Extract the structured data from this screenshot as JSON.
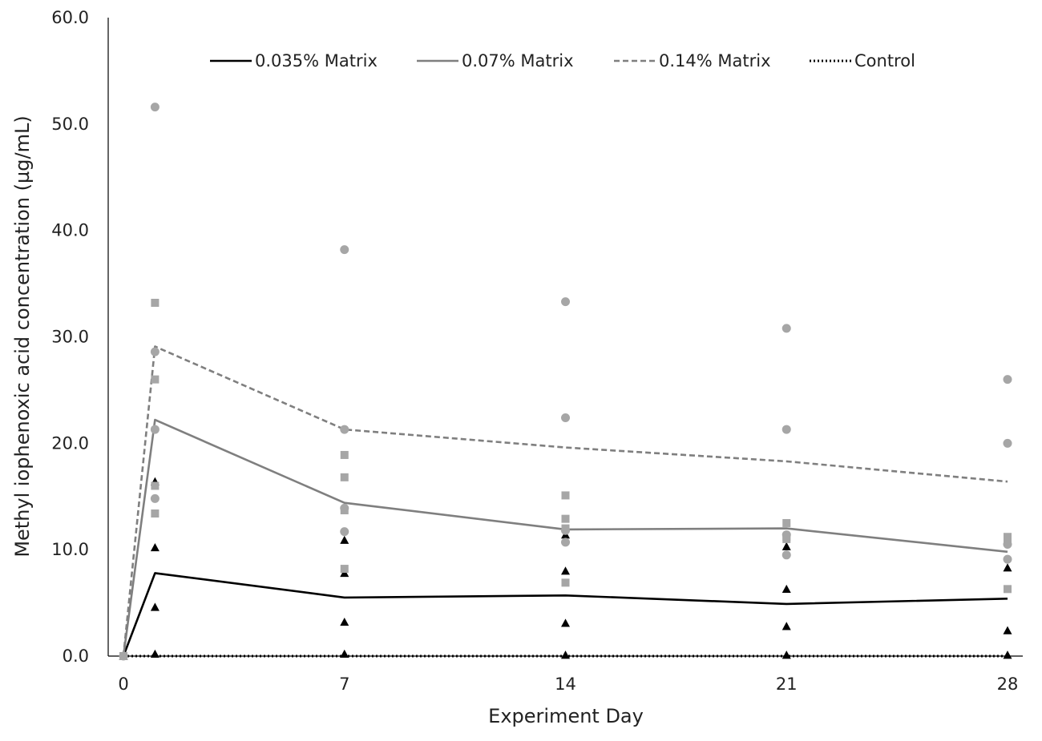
{
  "chart_data": {
    "type": "line",
    "title": "",
    "xlabel": "Experiment Day",
    "ylabel": "Methyl iophenoxic acid concentration (µg/mL)",
    "xlim": [
      0,
      28
    ],
    "ylim": [
      0,
      60
    ],
    "x_ticks": [
      0,
      7,
      14,
      21,
      28
    ],
    "y_ticks": [
      0,
      10,
      20,
      30,
      40,
      50,
      60
    ],
    "y_tick_labels": [
      "0.0",
      "10.0",
      "20.0",
      "30.0",
      "40.0",
      "50.0",
      "60.0"
    ],
    "grid": false,
    "legend_position": "top",
    "series": [
      {
        "name": "0.035% Matrix",
        "color": "#000000",
        "style": "solid",
        "marker": "triangle",
        "x": [
          0,
          1,
          7,
          14,
          21,
          28
        ],
        "mean": [
          0.0,
          7.8,
          5.5,
          5.7,
          4.9,
          5.4
        ],
        "points": [
          [
            0,
            0.0
          ],
          [
            1,
            16.4
          ],
          [
            1,
            10.2
          ],
          [
            1,
            4.6
          ],
          [
            1,
            0.2
          ],
          [
            7,
            10.9
          ],
          [
            7,
            7.8
          ],
          [
            7,
            3.2
          ],
          [
            7,
            0.2
          ],
          [
            14,
            11.4
          ],
          [
            14,
            8.0
          ],
          [
            14,
            3.1
          ],
          [
            14,
            0.1
          ],
          [
            21,
            10.3
          ],
          [
            21,
            6.3
          ],
          [
            21,
            2.8
          ],
          [
            21,
            0.1
          ],
          [
            28,
            8.3
          ],
          [
            28,
            2.4
          ],
          [
            28,
            0.1
          ]
        ]
      },
      {
        "name": "0.07% Matrix",
        "color": "#7f7f7f",
        "style": "solid",
        "marker": "square",
        "x": [
          0,
          1,
          7,
          14,
          21,
          28
        ],
        "mean": [
          0.0,
          22.2,
          14.4,
          11.9,
          12.0,
          9.8
        ],
        "points": [
          [
            0,
            0.0
          ],
          [
            1,
            33.2
          ],
          [
            1,
            26.0
          ],
          [
            1,
            16.0
          ],
          [
            1,
            13.4
          ],
          [
            7,
            18.9
          ],
          [
            7,
            16.8
          ],
          [
            7,
            13.7
          ],
          [
            7,
            8.2
          ],
          [
            14,
            15.1
          ],
          [
            14,
            12.9
          ],
          [
            14,
            12.0
          ],
          [
            14,
            6.9
          ],
          [
            21,
            12.5
          ],
          [
            21,
            11.2
          ],
          [
            21,
            11.0
          ],
          [
            28,
            11.2
          ],
          [
            28,
            10.8
          ],
          [
            28,
            6.3
          ]
        ]
      },
      {
        "name": "0.14% Matrix",
        "color": "#7f7f7f",
        "style": "dashed",
        "marker": "circle",
        "x": [
          0,
          1,
          7,
          14,
          21,
          28
        ],
        "mean": [
          0.0,
          29.1,
          21.3,
          19.6,
          18.3,
          16.4
        ],
        "points": [
          [
            0,
            0.0
          ],
          [
            1,
            51.6
          ],
          [
            1,
            28.6
          ],
          [
            1,
            21.3
          ],
          [
            1,
            14.8
          ],
          [
            7,
            38.2
          ],
          [
            7,
            21.3
          ],
          [
            7,
            13.9
          ],
          [
            7,
            11.7
          ],
          [
            14,
            33.3
          ],
          [
            14,
            22.4
          ],
          [
            14,
            11.8
          ],
          [
            14,
            10.7
          ],
          [
            21,
            30.8
          ],
          [
            21,
            21.3
          ],
          [
            21,
            11.4
          ],
          [
            21,
            9.5
          ],
          [
            28,
            26.0
          ],
          [
            28,
            20.0
          ],
          [
            28,
            10.5
          ],
          [
            28,
            9.1
          ]
        ]
      },
      {
        "name": "Control",
        "color": "#000000",
        "style": "dotted",
        "marker": "none",
        "x": [
          0,
          1,
          7,
          14,
          21,
          28
        ],
        "mean": [
          0,
          0,
          0,
          0,
          0,
          0
        ],
        "points": []
      }
    ]
  }
}
